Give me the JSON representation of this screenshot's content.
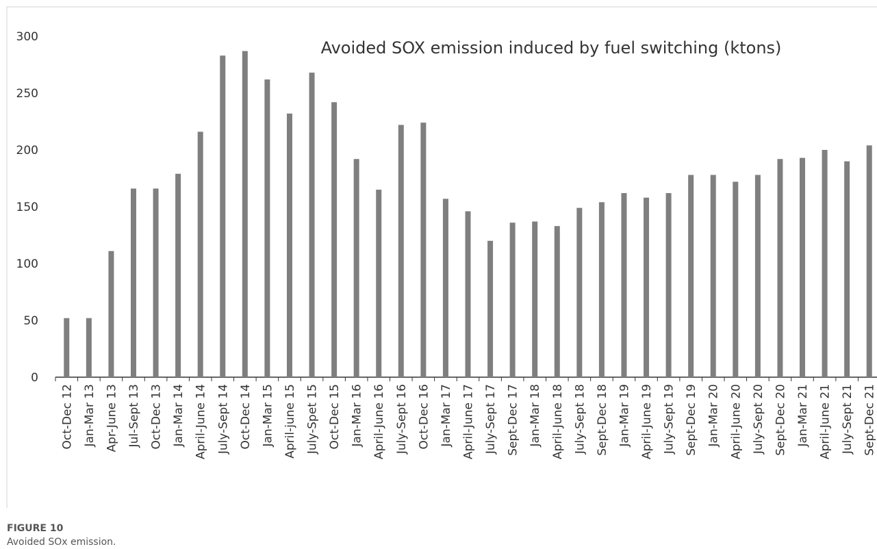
{
  "chart_data": {
    "type": "bar",
    "title": "Avoided SOX emission induced by fuel switching (ktons)",
    "figure_label": "FIGURE 10",
    "caption": "Avoided SOx emission.",
    "categories": [
      "Oct-Dec 12",
      "Jan-Mar 13",
      "Apr-June 13",
      "Jul-Sept 13",
      "Oct-Dec 13",
      "Jan-Mar 14",
      "April-June 14",
      "July-Sept 14",
      "Oct-Dec 14",
      "Jan-Mar 15",
      "April-june 15",
      "July-Spet 15",
      "Oct-Dec 15",
      "Jan-Mar 16",
      "April-June 16",
      "July-Sept 16",
      "Oct-Dec 16",
      "Jan-Mar 17",
      "April-June 17",
      "July-Sept 17",
      "Sept-Dec 17",
      "Jan-Mar 18",
      "April-June 18",
      "July-Sept 18",
      "Sept-Dec 18",
      "Jan-Mar 19",
      "April-June 19",
      "July-Sept 19",
      "Sept-Dec 19",
      "Jan-Mar 20",
      "April-June 20",
      "July-Sept 20",
      "Sept-Dec 20",
      "Jan-Mar 21",
      "April-June 21",
      "July-Sept 21",
      "Sept-Dec 21"
    ],
    "values": [
      52,
      52,
      111,
      166,
      166,
      179,
      216,
      283,
      287,
      262,
      232,
      268,
      242,
      192,
      165,
      222,
      224,
      157,
      146,
      120,
      136,
      137,
      133,
      149,
      154,
      162,
      158,
      162,
      178,
      178,
      172,
      178,
      192,
      193,
      200,
      190,
      204
    ],
    "color": "#7f7f7f",
    "ylim": [
      0,
      300
    ],
    "yticks": [
      0,
      50,
      100,
      150,
      200,
      250,
      300
    ],
    "grid": false
  }
}
